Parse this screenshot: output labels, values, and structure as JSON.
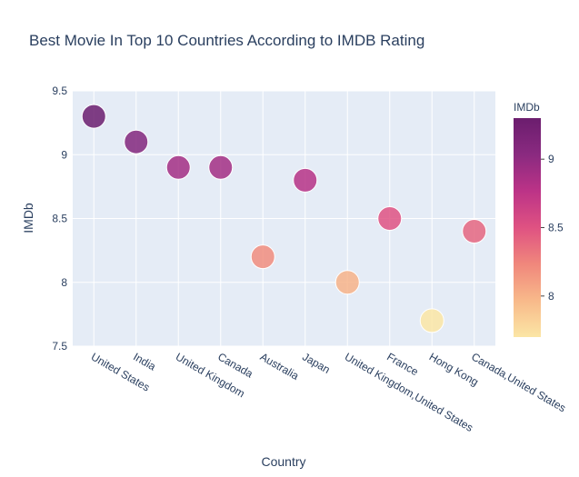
{
  "chart_data": {
    "type": "scatter",
    "title": "Best Movie In Top 10 Countries According to IMDB Rating",
    "xlabel": "Country",
    "ylabel": "IMDb",
    "categories": [
      "United States",
      "India",
      "United Kingdom",
      "Canada",
      "Australia",
      "Japan",
      "United Kingdom,United States",
      "France",
      "Hong Kong",
      "Canada,United States"
    ],
    "values": [
      9.3,
      9.1,
      8.9,
      8.9,
      8.2,
      8.8,
      8.0,
      8.5,
      7.7,
      8.4
    ],
    "ylim": [
      7.5,
      9.5
    ],
    "yticks": [
      "7.5",
      "8",
      "8.5",
      "9",
      "9.5"
    ],
    "ytick_values": [
      7.5,
      8,
      8.5,
      9,
      9.5
    ],
    "grid": true,
    "colorbar": {
      "title": "IMDb",
      "range": [
        7.7,
        9.3
      ],
      "ticks": [
        "8",
        "8.5",
        "9"
      ],
      "tick_values": [
        8,
        8.5,
        9
      ],
      "colorscale": [
        "#fbe6a5",
        "#f8b98a",
        "#f0877c",
        "#df5282",
        "#bc3387",
        "#8a2a80",
        "#6b1d6e"
      ]
    },
    "colors": {
      "plot_bg": "#e5ecf6",
      "grid": "#ffffff",
      "text": "#2a3f5f"
    }
  }
}
